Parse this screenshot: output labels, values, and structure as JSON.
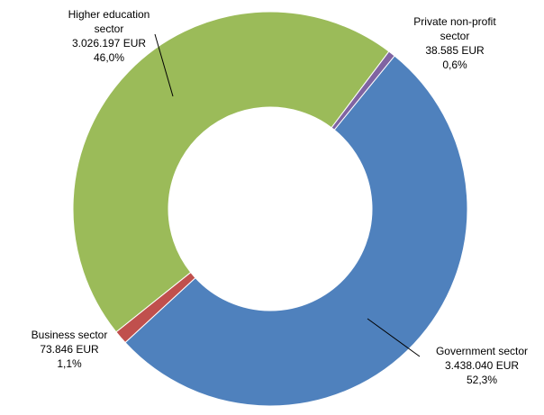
{
  "chart_data": {
    "type": "pie",
    "variant": "donut",
    "title": "",
    "start": "top, clockwise",
    "slices": [
      {
        "name": "Private non-profit sector",
        "line1": "Private non-profit",
        "line2": "sector",
        "value_text": "38.585 EUR",
        "percent_text": "0,6%",
        "value": 38585,
        "percent": 0.6,
        "color": "#8064A2"
      },
      {
        "name": "Government sector",
        "line1": "Government sector",
        "line2": "",
        "value_text": "3.438.040 EUR",
        "percent_text": "52,3%",
        "value": 3438040,
        "percent": 52.3,
        "color": "#4F81BD"
      },
      {
        "name": "Business sector",
        "line1": "Business sector",
        "line2": "",
        "value_text": "73.846 EUR",
        "percent_text": "1,1%",
        "value": 73846,
        "percent": 1.1,
        "color": "#C0504D"
      },
      {
        "name": "Higher education sector",
        "line1": "Higher education",
        "line2": "sector",
        "value_text": "3.026.197 EUR",
        "percent_text": "46,0%",
        "value": 3026197,
        "percent": 46.0,
        "color": "#9BBB59"
      }
    ]
  }
}
